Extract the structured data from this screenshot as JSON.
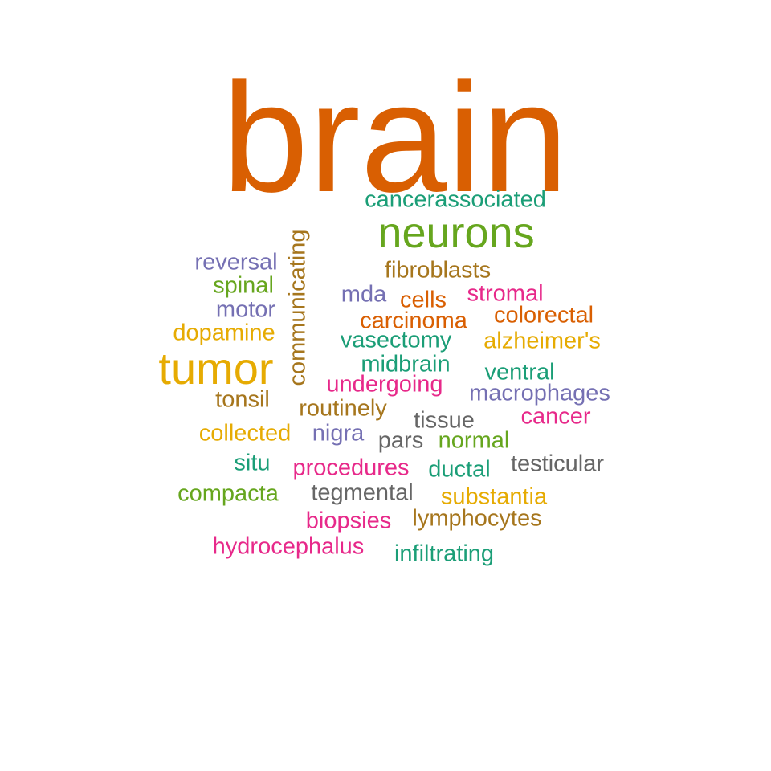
{
  "palette": {
    "orange_red": "#d95f02",
    "teal": "#1b9e77",
    "green": "#66a61e",
    "brown": "#a6761d",
    "purple": "#7570b3",
    "magenta": "#e7298a",
    "gold": "#e6ab02",
    "gray": "#666666"
  },
  "words": [
    {
      "id": "brain",
      "text": "brain",
      "color": "#d95f02"
    },
    {
      "id": "cancerassociated",
      "text": "cancerassociated",
      "color": "#1b9e77"
    },
    {
      "id": "neurons",
      "text": "neurons",
      "color": "#66a61e"
    },
    {
      "id": "communicating",
      "text": "communicating",
      "color": "#a6761d"
    },
    {
      "id": "reversal",
      "text": "reversal",
      "color": "#7570b3"
    },
    {
      "id": "fibroblasts",
      "text": "fibroblasts",
      "color": "#a6761d"
    },
    {
      "id": "spinal",
      "text": "spinal",
      "color": "#66a61e"
    },
    {
      "id": "mda",
      "text": "mda",
      "color": "#7570b3"
    },
    {
      "id": "cells",
      "text": "cells",
      "color": "#d95f02"
    },
    {
      "id": "stromal",
      "text": "stromal",
      "color": "#e7298a"
    },
    {
      "id": "motor",
      "text": "motor",
      "color": "#7570b3"
    },
    {
      "id": "carcinoma",
      "text": "carcinoma",
      "color": "#d95f02"
    },
    {
      "id": "colorectal",
      "text": "colorectal",
      "color": "#d95f02"
    },
    {
      "id": "dopamine",
      "text": "dopamine",
      "color": "#e6ab02"
    },
    {
      "id": "vasectomy",
      "text": "vasectomy",
      "color": "#1b9e77"
    },
    {
      "id": "alzheimers",
      "text": "alzheimer's",
      "color": "#e6ab02"
    },
    {
      "id": "tumor",
      "text": "tumor",
      "color": "#e6ab02"
    },
    {
      "id": "midbrain",
      "text": "midbrain",
      "color": "#1b9e77"
    },
    {
      "id": "ventral",
      "text": "ventral",
      "color": "#1b9e77"
    },
    {
      "id": "undergoing",
      "text": "undergoing",
      "color": "#e7298a"
    },
    {
      "id": "macrophages",
      "text": "macrophages",
      "color": "#7570b3"
    },
    {
      "id": "tonsil",
      "text": "tonsil",
      "color": "#a6761d"
    },
    {
      "id": "routinely",
      "text": "routinely",
      "color": "#a6761d"
    },
    {
      "id": "tissue",
      "text": "tissue",
      "color": "#666666"
    },
    {
      "id": "cancer",
      "text": "cancer",
      "color": "#e7298a"
    },
    {
      "id": "collected",
      "text": "collected",
      "color": "#e6ab02"
    },
    {
      "id": "nigra",
      "text": "nigra",
      "color": "#7570b3"
    },
    {
      "id": "pars",
      "text": "pars",
      "color": "#666666"
    },
    {
      "id": "normal",
      "text": "normal",
      "color": "#66a61e"
    },
    {
      "id": "situ",
      "text": "situ",
      "color": "#1b9e77"
    },
    {
      "id": "procedures",
      "text": "procedures",
      "color": "#e7298a"
    },
    {
      "id": "ductal",
      "text": "ductal",
      "color": "#1b9e77"
    },
    {
      "id": "testicular",
      "text": "testicular",
      "color": "#666666"
    },
    {
      "id": "compacta",
      "text": "compacta",
      "color": "#66a61e"
    },
    {
      "id": "tegmental",
      "text": "tegmental",
      "color": "#666666"
    },
    {
      "id": "substantia",
      "text": "substantia",
      "color": "#e6ab02"
    },
    {
      "id": "biopsies",
      "text": "biopsies",
      "color": "#e7298a"
    },
    {
      "id": "lymphocytes",
      "text": "lymphocytes",
      "color": "#a6761d"
    },
    {
      "id": "hydrocephalus",
      "text": "hydrocephalus",
      "color": "#e7298a"
    },
    {
      "id": "infiltrating",
      "text": "infiltrating",
      "color": "#1b9e77"
    }
  ]
}
